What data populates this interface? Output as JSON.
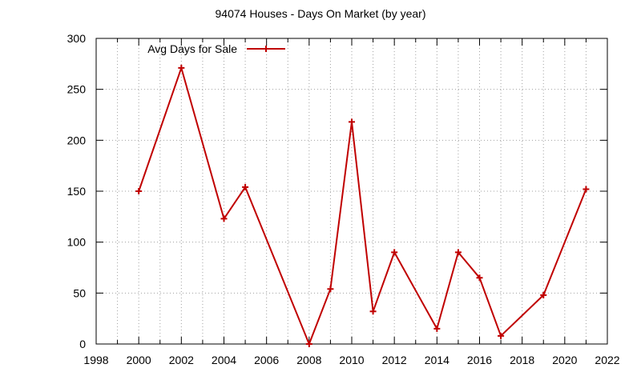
{
  "chart_data": {
    "type": "line",
    "title": "94074 Houses - Days On Market (by year)",
    "xlabel": "",
    "ylabel": "",
    "xlim": [
      1998,
      2022
    ],
    "ylim": [
      0,
      300
    ],
    "x_ticks": [
      1998,
      2000,
      2002,
      2004,
      2006,
      2008,
      2010,
      2012,
      2014,
      2016,
      2018,
      2020,
      2022
    ],
    "y_ticks": [
      0,
      50,
      100,
      150,
      200,
      250,
      300
    ],
    "x_grid_step": 1,
    "grid": true,
    "legend_position": "top-left",
    "series": [
      {
        "name": "Avg Days for Sale",
        "color": "#c00000",
        "marker": "plus",
        "x": [
          2000,
          2002,
          2004,
          2005,
          2008,
          2009,
          2010,
          2011,
          2012,
          2014,
          2015,
          2016,
          2017,
          2019,
          2021
        ],
        "y": [
          150,
          271,
          123,
          154,
          0,
          54,
          218,
          32,
          90,
          15,
          90,
          65,
          8,
          48,
          152
        ]
      }
    ]
  }
}
